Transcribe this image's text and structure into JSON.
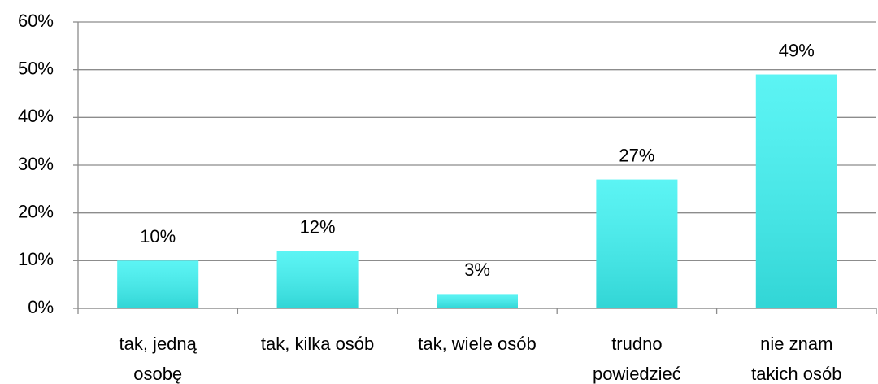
{
  "chart_data": {
    "type": "bar",
    "categories": [
      "tak, jedną\nosobę",
      "tak, kilka osób",
      "tak, wiele osób",
      "trudno\npowiedzieć",
      "nie znam\ntakich osób"
    ],
    "values": [
      10,
      12,
      3,
      27,
      49
    ],
    "value_labels": [
      "10%",
      "12%",
      "3%",
      "27%",
      "49%"
    ],
    "color": "#3ff2f2",
    "ylim": [
      0,
      60
    ],
    "yticks": [
      {
        "value": 0,
        "label": "0%"
      },
      {
        "value": 10,
        "label": "10%"
      },
      {
        "value": 20,
        "label": "20%"
      },
      {
        "value": 30,
        "label": "30%"
      },
      {
        "value": 40,
        "label": "40%"
      },
      {
        "value": 50,
        "label": "50%"
      },
      {
        "value": 60,
        "label": "60%"
      }
    ],
    "grid": true
  }
}
